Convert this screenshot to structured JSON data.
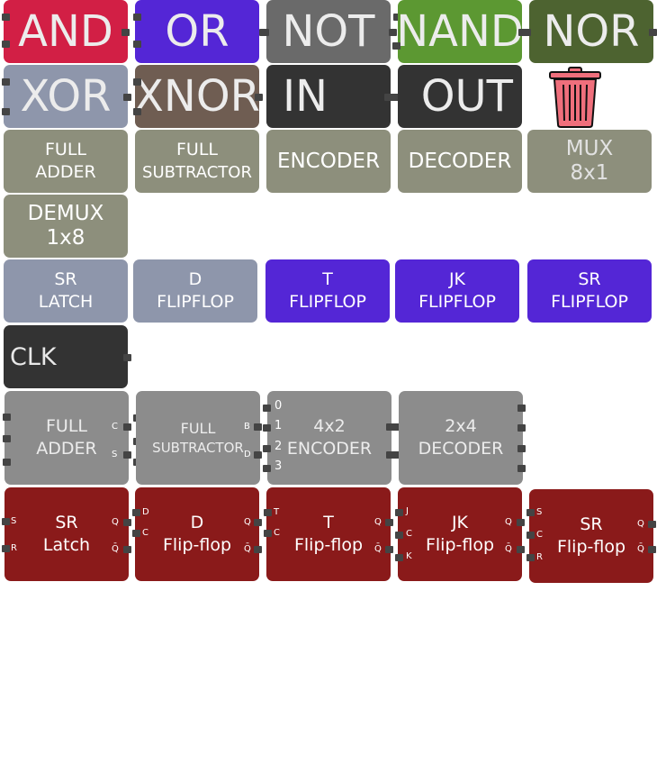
{
  "colors": {
    "and": "#d21f45",
    "or": "#5426d6",
    "not": "#6a6a6a",
    "nand": "#5c9832",
    "nor": "#4d6330",
    "xor": "#8e96ab",
    "xnor": "#6f5d52",
    "io": "#333333",
    "component": "#8d8f7c",
    "latch": "#8e96ab",
    "flipflop": "#5426d6",
    "ic": "#8c8c8c",
    "block": "#8a1a1a",
    "trash": "#ef6f7c"
  },
  "gates": {
    "and": "AND",
    "or": "OR",
    "not": "NOT",
    "nand": "NAND",
    "nor": "NOR",
    "xor": "XOR",
    "xnor": "XNOR",
    "in": "IN",
    "out": "OUT"
  },
  "trash": {
    "icon": "trash-icon"
  },
  "components": {
    "full_adder": [
      "FULL",
      "ADDER"
    ],
    "full_subtractor": [
      "FULL",
      "SUBTRACTOR"
    ],
    "encoder": "ENCODER",
    "decoder": "DECODER",
    "mux": [
      "MUX",
      "8x1"
    ],
    "demux": [
      "DEMUX",
      "1x8"
    ]
  },
  "sequential": {
    "sr_latch": [
      "SR",
      "LATCH"
    ],
    "d_flipflop": [
      "D",
      "FLIPFLOP"
    ],
    "t_flipflop": [
      "T",
      "FLIPFLOP"
    ],
    "jk_flipflop": [
      "JK",
      "FLIPFLOP"
    ],
    "sr_flipflop": [
      "SR",
      "FLIPFLOP"
    ],
    "clk": "CLK"
  },
  "placed_components": {
    "full_adder": {
      "title": [
        "FULL",
        "ADDER"
      ],
      "pins": [
        "C",
        "S"
      ]
    },
    "full_subtractor": {
      "title": [
        "FULL",
        "SUBTRACTOR"
      ],
      "pins": [
        "B",
        "D"
      ]
    },
    "encoder": {
      "title": [
        "4x2",
        "ENCODER"
      ],
      "inputs": [
        "0",
        "1",
        "2",
        "3"
      ]
    },
    "decoder": {
      "title": [
        "2x4",
        "DECODER"
      ]
    }
  },
  "placed_blocks": {
    "sr_latch": {
      "title": [
        "SR",
        "Latch"
      ],
      "inputs": [
        "S",
        "R"
      ],
      "outputs": [
        "Q",
        "Q̄"
      ]
    },
    "d_flipflop": {
      "title": [
        "D",
        "Flip-flop"
      ],
      "inputs": [
        "D",
        "C"
      ],
      "outputs": [
        "Q",
        "Q̄"
      ]
    },
    "t_flipflop": {
      "title": [
        "T",
        "Flip-flop"
      ],
      "inputs": [
        "T",
        "C"
      ],
      "outputs": [
        "Q",
        "Q̄"
      ]
    },
    "jk_flipflop": {
      "title": [
        "JK",
        "Flip-flop"
      ],
      "inputs": [
        "J",
        "C",
        "K"
      ],
      "outputs": [
        "Q",
        "Q̄"
      ]
    },
    "sr_flipflop": {
      "title": [
        "SR",
        "Flip-flop"
      ],
      "inputs": [
        "S",
        "C",
        "R"
      ],
      "outputs": [
        "Q",
        "Q̄"
      ]
    }
  }
}
